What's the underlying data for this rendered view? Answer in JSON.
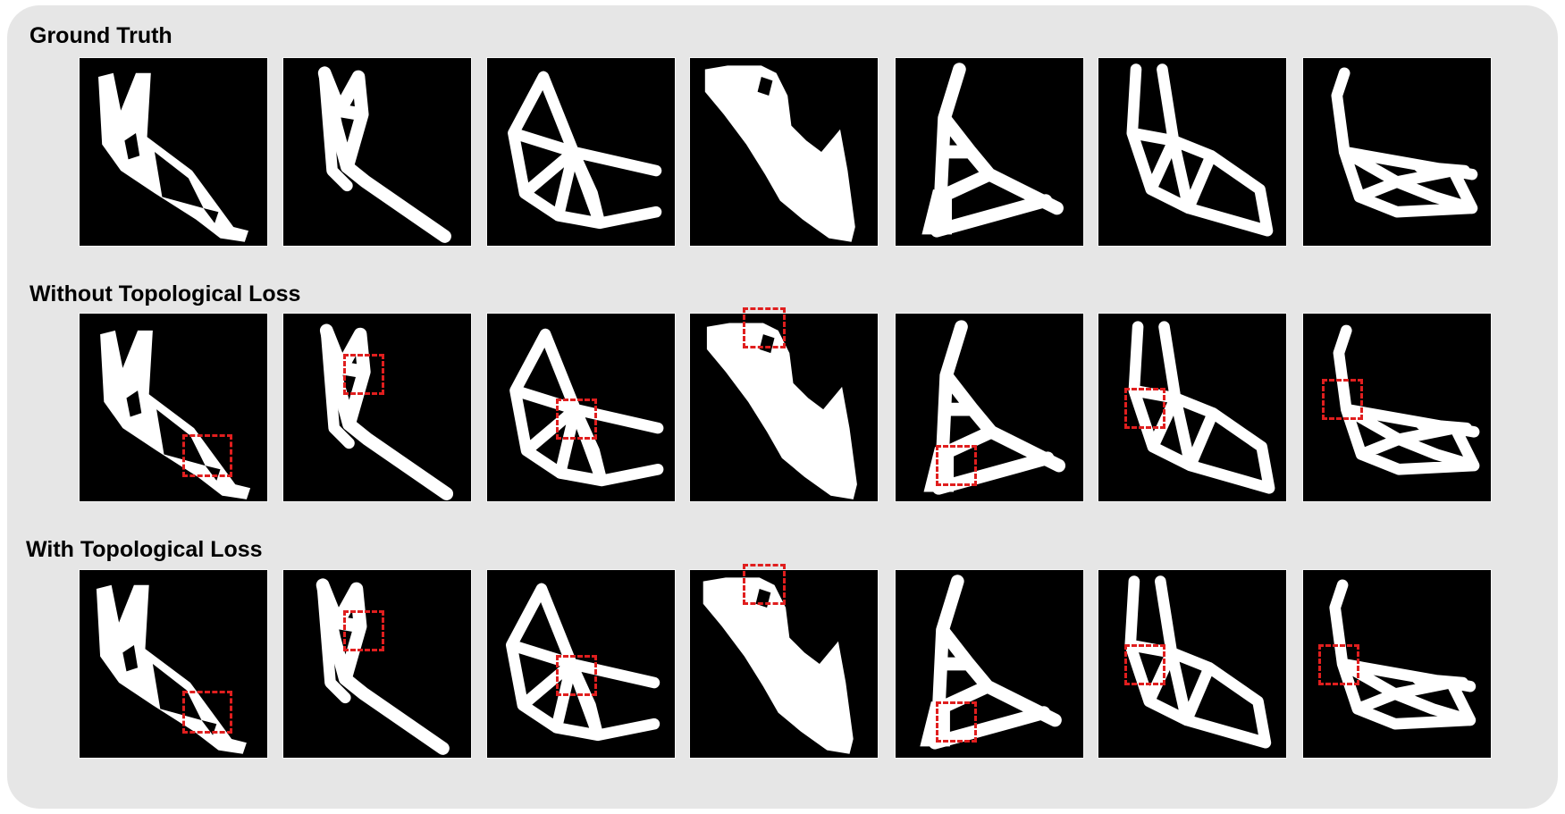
{
  "rows": [
    {
      "label": "Ground Truth"
    },
    {
      "label": "Without Topological Loss"
    },
    {
      "label": "With Topological Loss"
    }
  ],
  "colors": {
    "panel_background": "#e6e6e6",
    "tile_background": "#000000",
    "structure": "#ffffff",
    "highlight_box": "#e01e1e"
  },
  "grid": {
    "rows": 3,
    "columns": 7
  }
}
